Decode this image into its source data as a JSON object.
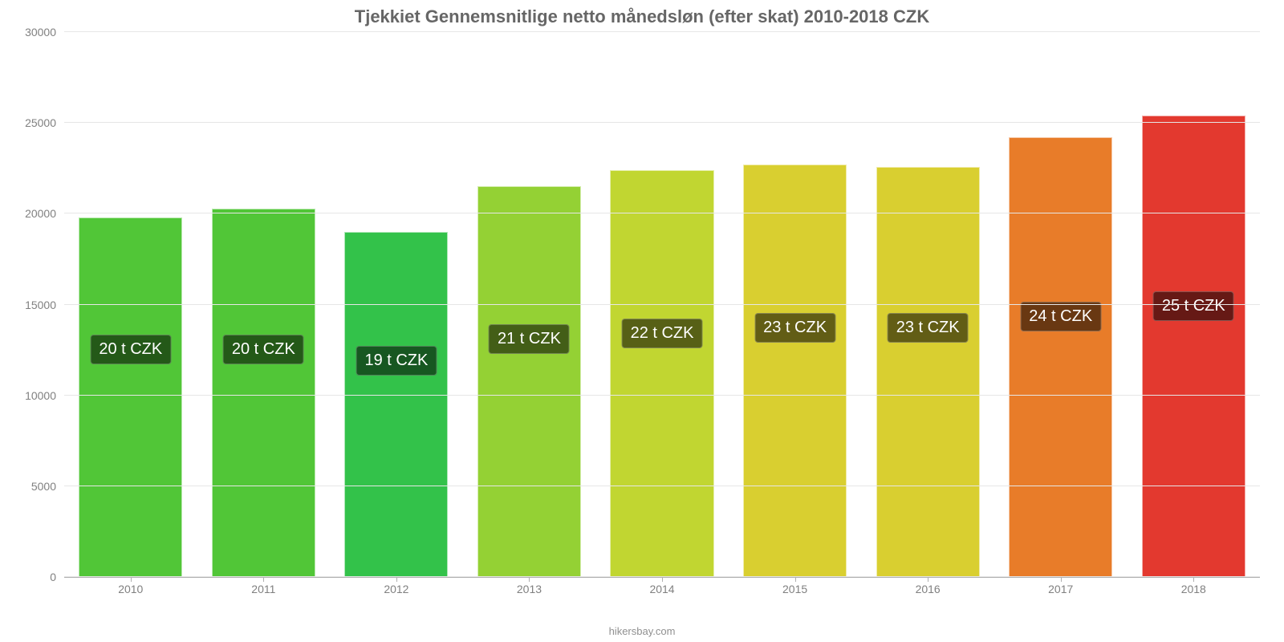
{
  "chart": {
    "type": "bar",
    "title": "Tjekkiet Gennemsnitlige netto månedsløn (efter skat) 2010-2018 CZK",
    "title_color": "#666666",
    "title_fontsize": 22,
    "categories": [
      "2010",
      "2011",
      "2012",
      "2013",
      "2014",
      "2015",
      "2016",
      "2017",
      "2018"
    ],
    "values": [
      19800,
      20300,
      19000,
      21500,
      22400,
      22700,
      22600,
      24200,
      25400
    ],
    "bar_labels": [
      "20 t CZK",
      "20 t CZK",
      "19 t CZK",
      "21 t CZK",
      "22 t CZK",
      "23 t CZK",
      "23 t CZK",
      "24 t CZK",
      "25 t CZK"
    ],
    "bar_colors": [
      "#51c637",
      "#51c637",
      "#33c24a",
      "#94d134",
      "#c1d631",
      "#d9cf30",
      "#d9cf30",
      "#e87c29",
      "#e3392f"
    ],
    "label_bottom_pct": [
      39,
      39,
      37,
      41,
      42,
      43,
      43,
      45,
      47
    ],
    "ylim": [
      0,
      30000
    ],
    "yticks": [
      0,
      5000,
      10000,
      15000,
      20000,
      25000,
      30000
    ],
    "ytick_labels": [
      "0",
      "5000",
      "10000",
      "15000",
      "20000",
      "25000",
      "30000"
    ],
    "axis_label_color": "#808080",
    "axis_label_fontsize": 14,
    "grid_color": "#e6e6e6",
    "axis_line_color": "#b0b0b0",
    "background_color": "#ffffff",
    "bar_label_fontsize": 20,
    "bar_label_bg": "rgba(0,0,0,0.55)",
    "bar_label_text_color": "#ffffff",
    "bar_width": 0.78,
    "attribution": "hikersbay.com",
    "attribution_color": "#909090"
  }
}
